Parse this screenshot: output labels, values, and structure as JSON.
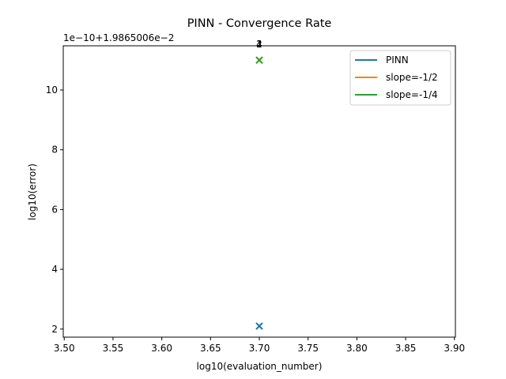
{
  "chart_data": {
    "type": "scatter",
    "title": "PINN - Convergence Rate",
    "xlabel": "log10(evaluation_number)",
    "ylabel": "log10(error)",
    "offset_label": "1e−10+1.9865006e−2",
    "xlim": [
      3.499,
      3.901
    ],
    "ylim": [
      1.73,
      11.48
    ],
    "x_ticks": [
      3.5,
      3.55,
      3.6,
      3.65,
      3.7,
      3.75,
      3.8,
      3.85,
      3.9
    ],
    "x_tick_labels": [
      "3.50",
      "3.55",
      "3.60",
      "3.65",
      "3.70",
      "3.75",
      "3.80",
      "3.85",
      "3.90"
    ],
    "y_ticks": [
      2,
      4,
      6,
      8,
      10
    ],
    "y_tick_labels": [
      "2",
      "4",
      "6",
      "8",
      "10"
    ],
    "grid": false,
    "legend_position": "top-right",
    "series": [
      {
        "name": "PINN",
        "color": "#1f77b4",
        "marker": "x",
        "points": [
          {
            "x": 3.7,
            "y": 2.1,
            "label": ""
          }
        ]
      },
      {
        "name": "slope=-1/2",
        "color": "#ff7f0e",
        "marker": "x",
        "points": [
          {
            "x": 3.7,
            "y": 11.0,
            "label": ""
          }
        ]
      },
      {
        "name": "slope=-1/4",
        "color": "#2ca02c",
        "marker": "x",
        "points": [
          {
            "x": 3.7,
            "y": 11.0,
            "label": ""
          }
        ]
      }
    ],
    "annotations": [
      {
        "text": "1",
        "x": 3.7,
        "y": 11.5
      },
      {
        "text": "2",
        "x": 3.7,
        "y": 11.5
      },
      {
        "text": "4",
        "x": 3.7,
        "y": 11.5
      }
    ]
  }
}
